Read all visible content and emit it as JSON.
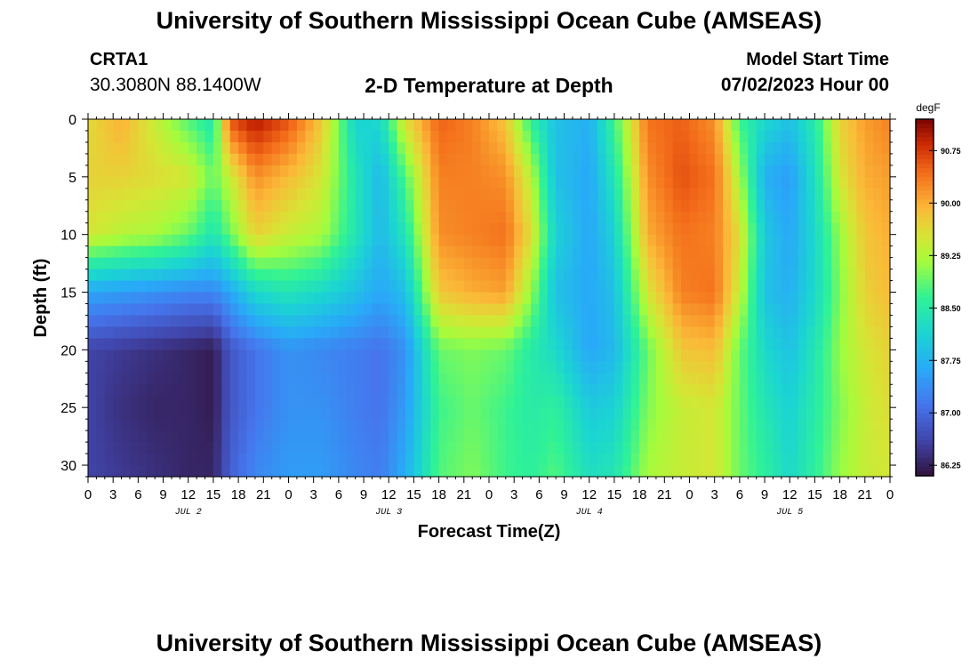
{
  "header": {
    "title": "University of Southern Mississippi Ocean Cube (AMSEAS)",
    "station": "CRTA1",
    "coords": "30.3080N  88.1400W",
    "plot_title": "2-D Temperature at Depth",
    "start_label": "Model Start Time",
    "start_value": "07/02/2023 Hour 00"
  },
  "footer": {
    "title": "University of Southern Mississippi Ocean Cube (AMSEAS)"
  },
  "chart_data": {
    "type": "heatmap",
    "xlabel": "Forecast Time(Z)",
    "ylabel": "Depth (ft)",
    "x_tick_labels": [
      "0",
      "3",
      "6",
      "9",
      "12",
      "15",
      "18",
      "21",
      "0",
      "3",
      "6",
      "9",
      "12",
      "15",
      "18",
      "21",
      "0",
      "3",
      "6",
      "9",
      "12",
      "15",
      "18",
      "21",
      "0",
      "3",
      "6",
      "9",
      "12",
      "15",
      "18",
      "21",
      "0"
    ],
    "day_labels": [
      {
        "label": "JUL 2",
        "hour": 12
      },
      {
        "label": "JUL 3",
        "hour": 36
      },
      {
        "label": "JUL 4",
        "hour": 60
      },
      {
        "label": "JUL 5",
        "hour": 84
      }
    ],
    "xlim": [
      0,
      96
    ],
    "ylim": [
      0,
      31
    ],
    "y_ticks": [
      0,
      5,
      10,
      15,
      20,
      25,
      30
    ],
    "y_inverted": true,
    "colorbar": {
      "unit": "degF",
      "range": [
        86.1,
        91.2
      ],
      "ticks": [
        "90.75",
        "90.00",
        "89.25",
        "88.50",
        "87.75",
        "87.00",
        "86.25"
      ],
      "tick_values": [
        90.75,
        90.0,
        89.25,
        88.5,
        87.75,
        87.0,
        86.25
      ]
    },
    "depths": [
      0,
      5,
      10,
      15,
      20,
      25,
      31
    ],
    "profiles": [
      {
        "hour": 0,
        "temps": [
          89.6,
          89.7,
          89.5,
          87.6,
          86.6,
          86.6,
          86.6
        ]
      },
      {
        "hour": 4,
        "temps": [
          90.0,
          89.7,
          89.3,
          87.5,
          86.5,
          86.4,
          86.5
        ]
      },
      {
        "hour": 8,
        "temps": [
          89.4,
          89.6,
          89.2,
          87.4,
          86.4,
          86.3,
          86.4
        ]
      },
      {
        "hour": 12,
        "temps": [
          88.8,
          89.5,
          88.9,
          87.3,
          86.3,
          86.3,
          86.3
        ]
      },
      {
        "hour": 15,
        "temps": [
          88.4,
          88.9,
          88.4,
          87.3,
          86.2,
          86.2,
          86.3
        ]
      },
      {
        "hour": 17,
        "temps": [
          90.6,
          89.4,
          88.9,
          87.6,
          86.8,
          86.8,
          86.9
        ]
      },
      {
        "hour": 20,
        "temps": [
          91.0,
          90.2,
          89.7,
          88.2,
          87.1,
          87.1,
          87.3
        ]
      },
      {
        "hour": 24,
        "temps": [
          90.6,
          89.9,
          89.4,
          88.4,
          87.4,
          87.4,
          87.5
        ]
      },
      {
        "hour": 28,
        "temps": [
          89.8,
          89.5,
          89.2,
          88.2,
          87.3,
          87.4,
          87.5
        ]
      },
      {
        "hour": 32,
        "temps": [
          88.1,
          88.4,
          88.4,
          87.9,
          87.2,
          87.2,
          87.3
        ]
      },
      {
        "hour": 35,
        "temps": [
          88.2,
          87.8,
          87.8,
          87.6,
          87.1,
          87.1,
          87.2
        ]
      },
      {
        "hour": 38,
        "temps": [
          89.6,
          88.8,
          88.4,
          87.9,
          87.4,
          87.5,
          87.7
        ]
      },
      {
        "hour": 42,
        "temps": [
          90.5,
          90.3,
          90.2,
          89.8,
          88.9,
          88.7,
          88.8
        ]
      },
      {
        "hour": 46,
        "temps": [
          90.3,
          90.3,
          90.3,
          90.0,
          89.0,
          88.9,
          89.0
        ]
      },
      {
        "hour": 50,
        "temps": [
          89.8,
          90.2,
          90.4,
          90.1,
          88.9,
          88.7,
          88.7
        ]
      },
      {
        "hour": 53,
        "temps": [
          88.6,
          89.3,
          89.6,
          89.1,
          88.5,
          88.5,
          88.6
        ]
      },
      {
        "hour": 56,
        "temps": [
          87.9,
          87.9,
          88.1,
          87.9,
          88.2,
          88.6,
          88.8
        ]
      },
      {
        "hour": 60,
        "temps": [
          87.7,
          87.6,
          87.6,
          87.6,
          87.6,
          88.0,
          88.3
        ]
      },
      {
        "hour": 63,
        "temps": [
          88.7,
          88.4,
          88.1,
          87.9,
          87.8,
          88.1,
          88.4
        ]
      },
      {
        "hour": 67,
        "temps": [
          90.4,
          90.2,
          90.0,
          89.5,
          88.9,
          89.0,
          89.2
        ]
      },
      {
        "hour": 71,
        "temps": [
          90.5,
          90.6,
          90.4,
          90.3,
          89.8,
          89.4,
          89.4
        ]
      },
      {
        "hour": 75,
        "temps": [
          90.2,
          90.4,
          90.3,
          90.4,
          89.9,
          89.5,
          89.5
        ]
      },
      {
        "hour": 78,
        "temps": [
          88.7,
          89.2,
          89.6,
          89.4,
          88.9,
          88.9,
          88.9
        ]
      },
      {
        "hour": 81,
        "temps": [
          88.2,
          87.7,
          88.0,
          87.9,
          88.2,
          88.4,
          88.6
        ]
      },
      {
        "hour": 84,
        "temps": [
          87.9,
          87.5,
          87.6,
          87.7,
          87.9,
          88.1,
          88.2
        ]
      },
      {
        "hour": 87,
        "temps": [
          88.5,
          88.3,
          88.2,
          88.2,
          88.4,
          88.5,
          88.6
        ]
      },
      {
        "hour": 90,
        "temps": [
          89.7,
          89.5,
          89.1,
          89.0,
          89.1,
          89.0,
          89.1
        ]
      },
      {
        "hour": 93,
        "temps": [
          90.1,
          90.0,
          89.8,
          89.7,
          89.5,
          89.4,
          89.4
        ]
      },
      {
        "hour": 96,
        "temps": [
          90.3,
          90.1,
          90.0,
          89.9,
          89.7,
          89.6,
          89.5
        ]
      }
    ]
  }
}
